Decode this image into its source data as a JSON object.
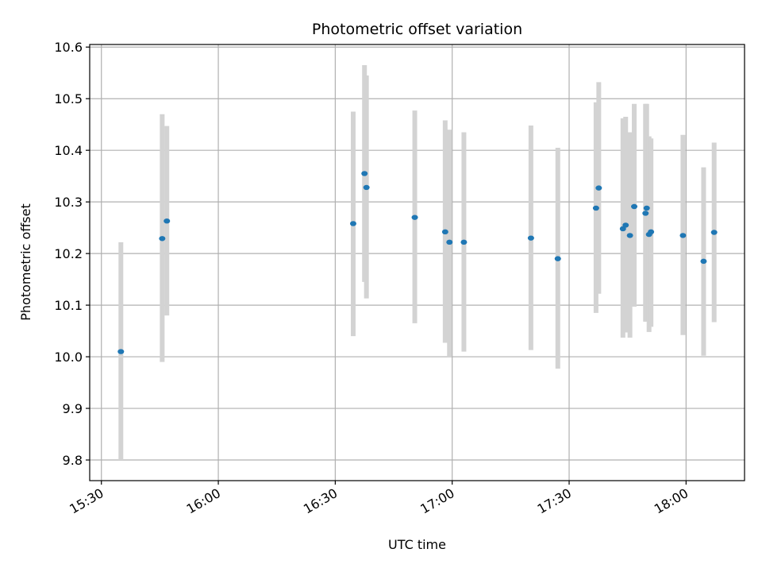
{
  "chart_data": {
    "type": "scatter",
    "title": "Photometric offset variation",
    "xlabel": "UTC time",
    "ylabel": "Photometric offset",
    "grid": true,
    "ylim": [
      9.76,
      10.605
    ],
    "xlim": [
      "15:27",
      "18:15"
    ],
    "x_ticks": [
      "15:30",
      "16:00",
      "16:30",
      "17:00",
      "17:30",
      "18:00"
    ],
    "y_ticks": [
      9.8,
      9.9,
      10.0,
      10.1,
      10.2,
      10.3,
      10.4,
      10.5,
      10.6
    ],
    "y_tick_labels": [
      "9.8",
      "9.9",
      "10.0",
      "10.1",
      "10.2",
      "10.3",
      "10.4",
      "10.5",
      "10.6"
    ],
    "colors": {
      "marker": "#1f77b4",
      "errorbar": "#d3d3d3",
      "grid": "#b0b0b0"
    },
    "points": [
      {
        "t": "15:35:00",
        "y": 10.01,
        "lo": 9.8,
        "hi": 10.222
      },
      {
        "t": "15:45:36",
        "y": 10.229,
        "lo": 9.99,
        "hi": 10.47
      },
      {
        "t": "15:46:48",
        "y": 10.263,
        "lo": 10.08,
        "hi": 10.447
      },
      {
        "t": "16:34:36",
        "y": 10.258,
        "lo": 10.04,
        "hi": 10.475
      },
      {
        "t": "16:37:30",
        "y": 10.355,
        "lo": 10.145,
        "hi": 10.565
      },
      {
        "t": "16:38:00",
        "y": 10.328,
        "lo": 10.113,
        "hi": 10.545
      },
      {
        "t": "16:50:24",
        "y": 10.27,
        "lo": 10.065,
        "hi": 10.477
      },
      {
        "t": "16:58:12",
        "y": 10.242,
        "lo": 10.027,
        "hi": 10.458
      },
      {
        "t": "16:59:18",
        "y": 10.222,
        "lo": 10.0,
        "hi": 10.44
      },
      {
        "t": "17:03:00",
        "y": 10.222,
        "lo": 10.01,
        "hi": 10.435
      },
      {
        "t": "17:20:12",
        "y": 10.23,
        "lo": 10.013,
        "hi": 10.448
      },
      {
        "t": "17:27:06",
        "y": 10.19,
        "lo": 9.977,
        "hi": 10.405
      },
      {
        "t": "17:36:54",
        "y": 10.288,
        "lo": 10.085,
        "hi": 10.493
      },
      {
        "t": "17:37:36",
        "y": 10.327,
        "lo": 10.122,
        "hi": 10.532
      },
      {
        "t": "17:43:48",
        "y": 10.248,
        "lo": 10.037,
        "hi": 10.462
      },
      {
        "t": "17:44:30",
        "y": 10.255,
        "lo": 10.047,
        "hi": 10.465
      },
      {
        "t": "17:45:36",
        "y": 10.235,
        "lo": 10.037,
        "hi": 10.435
      },
      {
        "t": "17:46:42",
        "y": 10.291,
        "lo": 10.097,
        "hi": 10.49
      },
      {
        "t": "17:49:36",
        "y": 10.278,
        "lo": 10.068,
        "hi": 10.49
      },
      {
        "t": "17:49:54",
        "y": 10.288,
        "lo": 10.068,
        "hi": 10.49
      },
      {
        "t": "17:50:30",
        "y": 10.237,
        "lo": 10.048,
        "hi": 10.427
      },
      {
        "t": "17:51:00",
        "y": 10.242,
        "lo": 10.058,
        "hi": 10.423
      },
      {
        "t": "17:59:12",
        "y": 10.235,
        "lo": 10.042,
        "hi": 10.43
      },
      {
        "t": "18:04:30",
        "y": 10.185,
        "lo": 10.002,
        "hi": 10.367
      },
      {
        "t": "18:07:12",
        "y": 10.241,
        "lo": 10.067,
        "hi": 10.415
      }
    ]
  }
}
